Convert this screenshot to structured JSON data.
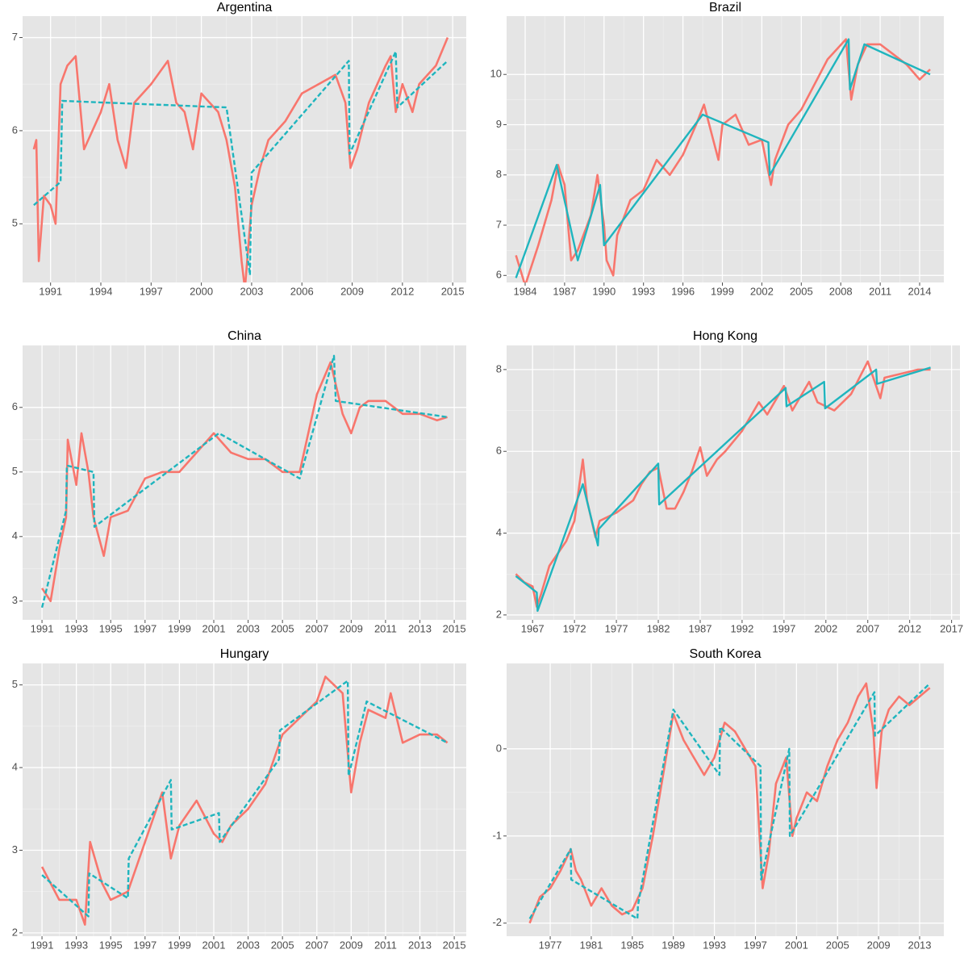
{
  "chart_data": [
    {
      "type": "line",
      "title": "Argentina",
      "xlim": [
        1989.33,
        2015.81
      ],
      "ylim": [
        4.37,
        7.23
      ],
      "xticks": [
        1991,
        1994,
        1997,
        2000,
        2003,
        2006,
        2009,
        2012,
        2015
      ],
      "yticks": [
        5,
        6,
        7
      ],
      "grid": true,
      "series": [
        {
          "color": "#f8766d",
          "linestyle": "solid",
          "x": [
            1990,
            1990.15,
            1990.3,
            1990.6,
            1991,
            1991.3,
            1991.6,
            1992,
            1992.5,
            1993,
            1993.5,
            1994,
            1994.5,
            1995,
            1995.5,
            1996,
            1997,
            1998,
            1998.5,
            1999,
            1999.5,
            2000,
            2001,
            2001.5,
            2002,
            2002.4,
            2002.6,
            2003,
            2003.5,
            2004,
            2005,
            2006,
            2007,
            2008,
            2008.6,
            2008.9,
            2009.3,
            2010,
            2011,
            2011.3,
            2011.6,
            2012,
            2012.6,
            2013,
            2014,
            2014.7
          ],
          "values": [
            5.8,
            5.9,
            4.6,
            5.3,
            5.2,
            5.0,
            6.5,
            6.7,
            6.8,
            5.8,
            6.0,
            6.2,
            6.5,
            5.9,
            5.6,
            6.3,
            6.5,
            6.75,
            6.3,
            6.2,
            5.8,
            6.4,
            6.2,
            5.9,
            5.4,
            4.6,
            4.3,
            5.2,
            5.6,
            5.9,
            6.1,
            6.4,
            6.5,
            6.6,
            6.3,
            5.6,
            5.8,
            6.3,
            6.7,
            6.8,
            6.2,
            6.5,
            6.2,
            6.5,
            6.7,
            7.0
          ]
        },
        {
          "color": "#1fb5be",
          "linestyle": "dashed",
          "x": [
            1990,
            1991.6,
            1991.7,
            2001.5,
            2002.9,
            2003,
            2008.8,
            2008.85,
            2011.6,
            2011.7,
            2014.7
          ],
          "values": [
            5.2,
            5.45,
            6.32,
            6.25,
            4.45,
            5.55,
            6.75,
            5.75,
            6.85,
            6.25,
            6.75
          ]
        }
      ]
    },
    {
      "type": "line",
      "title": "Brazil",
      "xlim": [
        1982.59,
        2015.84
      ],
      "ylim": [
        5.86,
        11.16
      ],
      "xticks": [
        1984,
        1987,
        1990,
        1993,
        1996,
        1999,
        2002,
        2005,
        2008,
        2011,
        2014
      ],
      "yticks": [
        6,
        7,
        8,
        9,
        10
      ],
      "grid": true,
      "series": [
        {
          "color": "#f8766d",
          "linestyle": "solid",
          "x": [
            1983.3,
            1984,
            1985,
            1986,
            1986.5,
            1987,
            1987.5,
            1988,
            1989,
            1989.5,
            1990,
            1990.2,
            1990.7,
            1991,
            1992,
            1993,
            1994,
            1995,
            1996,
            1997,
            1997.6,
            1998,
            1998.7,
            1999,
            2000,
            2001,
            2002,
            2002.7,
            2003,
            2004,
            2005,
            2006,
            2007,
            2008.4,
            2008.8,
            2009.3,
            2010,
            2011,
            2012,
            2013,
            2014,
            2014.8
          ],
          "values": [
            6.4,
            5.8,
            6.6,
            7.5,
            8.2,
            7.8,
            6.3,
            6.5,
            7.2,
            8.0,
            7.0,
            6.3,
            6.0,
            6.8,
            7.5,
            7.7,
            8.3,
            8.0,
            8.4,
            9.0,
            9.4,
            9.0,
            8.3,
            9.0,
            9.2,
            8.6,
            8.7,
            7.8,
            8.3,
            9.0,
            9.3,
            9.8,
            10.3,
            10.7,
            9.5,
            10.2,
            10.6,
            10.6,
            10.4,
            10.2,
            9.9,
            10.1
          ]
        },
        {
          "color": "#1fb5be",
          "linestyle": "solid",
          "x": [
            1983.3,
            1986.4,
            1988,
            1989.7,
            1990,
            1997.5,
            2002.5,
            2002.6,
            2008.6,
            2008.7,
            2009.8,
            2014.8
          ],
          "values": [
            5.95,
            8.2,
            6.3,
            7.8,
            6.6,
            9.2,
            8.65,
            8.0,
            10.7,
            9.7,
            10.6,
            10.0
          ]
        }
      ]
    },
    {
      "type": "line",
      "title": "China",
      "xlim": [
        1989.87,
        2015.7
      ],
      "ylim": [
        2.71,
        6.96
      ],
      "xticks": [
        1991,
        1993,
        1995,
        1997,
        1999,
        2001,
        2003,
        2005,
        2007,
        2009,
        2011,
        2013,
        2015
      ],
      "yticks": [
        3,
        4,
        5,
        6
      ],
      "grid": true,
      "series": [
        {
          "color": "#f8766d",
          "linestyle": "solid",
          "x": [
            1991,
            1991.5,
            1992,
            1992.4,
            1992.5,
            1993,
            1993.3,
            1993.7,
            1994,
            1994.6,
            1995,
            1996,
            1997,
            1998,
            1999,
            2000,
            2001,
            2002,
            2003,
            2004,
            2005,
            2006,
            2007,
            2007.8,
            2008.5,
            2009,
            2009.5,
            2010,
            2011,
            2012,
            2013,
            2014,
            2014.6
          ],
          "values": [
            3.2,
            3.0,
            3.8,
            4.3,
            5.5,
            4.8,
            5.6,
            5.0,
            4.3,
            3.7,
            4.3,
            4.4,
            4.9,
            5.0,
            5.0,
            5.3,
            5.6,
            5.3,
            5.2,
            5.2,
            5.0,
            5.0,
            6.2,
            6.7,
            5.9,
            5.6,
            6.0,
            6.1,
            6.1,
            5.9,
            5.9,
            5.8,
            5.85
          ]
        },
        {
          "color": "#1fb5be",
          "linestyle": "dashed",
          "x": [
            1991,
            1992.4,
            1992.45,
            1994,
            1994.05,
            2001.3,
            2006,
            2008,
            2008.1,
            2014.6
          ],
          "values": [
            2.9,
            4.4,
            5.1,
            5.0,
            4.15,
            5.6,
            4.9,
            6.8,
            6.1,
            5.85
          ]
        }
      ]
    },
    {
      "type": "line",
      "title": "Hong Kong",
      "xlim": [
        1963.9,
        2018
      ],
      "ylim": [
        1.88,
        8.59
      ],
      "xticks": [
        1967,
        1972,
        1977,
        1982,
        1987,
        1992,
        1997,
        2002,
        2007,
        2012,
        2017
      ],
      "yticks": [
        2,
        4,
        6,
        8
      ],
      "grid": true,
      "series": [
        {
          "color": "#f8766d",
          "linestyle": "solid",
          "x": [
            1965,
            1966,
            1967,
            1967.5,
            1968,
            1969,
            1970,
            1971,
            1972,
            1973,
            1973.5,
            1974.5,
            1975,
            1977,
            1979,
            1980,
            1981,
            1982,
            1983,
            1984,
            1985,
            1986,
            1987,
            1987.8,
            1989,
            1990,
            1992,
            1994,
            1995,
            1997,
            1998,
            2000,
            2001,
            2003,
            2005,
            2007,
            2008.5,
            2009,
            2011,
            2013,
            2014.5
          ],
          "values": [
            3.0,
            2.8,
            2.7,
            2.2,
            2.5,
            3.2,
            3.5,
            3.8,
            4.3,
            5.8,
            4.8,
            3.9,
            4.3,
            4.5,
            4.8,
            5.2,
            5.5,
            5.6,
            4.6,
            4.6,
            5.0,
            5.5,
            6.1,
            5.4,
            5.8,
            6.0,
            6.5,
            7.2,
            6.9,
            7.6,
            7.0,
            7.7,
            7.2,
            7.0,
            7.4,
            8.2,
            7.3,
            7.8,
            7.9,
            8.0,
            8.0
          ]
        },
        {
          "color": "#1fb5be",
          "linestyle": "solid",
          "x": [
            1965,
            1967.5,
            1967.6,
            1973,
            1974.8,
            1974.9,
            1982,
            1982.1,
            1997.2,
            1997.3,
            2001.8,
            2001.9,
            2008,
            2008.1,
            2014.5
          ],
          "values": [
            2.95,
            2.55,
            2.1,
            5.2,
            3.7,
            4.1,
            5.7,
            4.7,
            7.55,
            7.1,
            7.7,
            7.05,
            8.0,
            7.65,
            8.05
          ]
        }
      ]
    },
    {
      "type": "line",
      "title": "Hungary",
      "xlim": [
        1989.87,
        2015.7
      ],
      "ylim": [
        1.96,
        5.26
      ],
      "xticks": [
        1991,
        1993,
        1995,
        1997,
        1999,
        2001,
        2003,
        2005,
        2007,
        2009,
        2011,
        2013,
        2015
      ],
      "yticks": [
        2,
        3,
        4,
        5
      ],
      "grid": true,
      "series": [
        {
          "color": "#f8766d",
          "linestyle": "solid",
          "x": [
            1991,
            1992,
            1993,
            1993.5,
            1993.8,
            1994.5,
            1995,
            1996,
            1997,
            1998,
            1998.5,
            1999,
            2000,
            2001,
            2001.5,
            2002,
            2003,
            2004,
            2005,
            2006,
            2007,
            2007.5,
            2008.5,
            2009,
            2009.5,
            2010,
            2011,
            2011.3,
            2012,
            2013,
            2014,
            2014.6
          ],
          "values": [
            2.8,
            2.4,
            2.4,
            2.1,
            3.1,
            2.6,
            2.4,
            2.5,
            3.1,
            3.7,
            2.9,
            3.3,
            3.6,
            3.2,
            3.1,
            3.3,
            3.5,
            3.8,
            4.4,
            4.6,
            4.8,
            5.1,
            4.9,
            3.7,
            4.3,
            4.7,
            4.6,
            4.9,
            4.3,
            4.4,
            4.4,
            4.3
          ]
        },
        {
          "color": "#1fb5be",
          "linestyle": "dashed",
          "x": [
            1991,
            1993.7,
            1993.75,
            1996,
            1996.05,
            1998.5,
            1998.55,
            2001.3,
            2001.35,
            2004.8,
            2004.85,
            2008.8,
            2008.85,
            2009.9,
            2014.6
          ],
          "values": [
            2.7,
            2.2,
            2.72,
            2.42,
            2.9,
            3.85,
            3.25,
            3.45,
            3.1,
            4.1,
            4.45,
            5.05,
            3.9,
            4.8,
            4.3
          ]
        }
      ]
    },
    {
      "type": "line",
      "title": "South Korea",
      "xlim": [
        1972.75,
        2015.36
      ],
      "ylim": [
        -2.15,
        0.98
      ],
      "xticks": [
        1977,
        1981,
        1985,
        1989,
        1993,
        1997,
        2001,
        2005,
        2009,
        2013
      ],
      "yticks": [
        -2,
        -1,
        0
      ],
      "grid": true,
      "series": [
        {
          "color": "#f8766d",
          "linestyle": "solid",
          "x": [
            1975,
            1976,
            1977,
            1978,
            1979,
            1979.5,
            1980,
            1981,
            1982,
            1983,
            1984,
            1985,
            1986,
            1987,
            1988,
            1989,
            1990,
            1991,
            1992,
            1993,
            1994,
            1995,
            1996,
            1997,
            1997.7,
            1998.3,
            1999,
            2000,
            2000.6,
            2001,
            2002,
            2003,
            2004,
            2005,
            2006,
            2007,
            2007.8,
            2008.5,
            2008.8,
            2009.3,
            2010,
            2011,
            2012,
            2013,
            2014
          ],
          "values": [
            -2.0,
            -1.7,
            -1.6,
            -1.4,
            -1.15,
            -1.4,
            -1.5,
            -1.8,
            -1.6,
            -1.8,
            -1.9,
            -1.85,
            -1.6,
            -1.0,
            -0.3,
            0.4,
            0.1,
            -0.1,
            -0.3,
            -0.1,
            0.3,
            0.2,
            0.0,
            -0.2,
            -1.6,
            -1.2,
            -0.4,
            -0.1,
            -1.0,
            -0.8,
            -0.5,
            -0.6,
            -0.2,
            0.1,
            0.3,
            0.6,
            0.75,
            0.2,
            -0.45,
            0.2,
            0.45,
            0.6,
            0.5,
            0.6,
            0.7
          ]
        },
        {
          "color": "#1fb5be",
          "linestyle": "dashed",
          "x": [
            1975,
            1979,
            1979.05,
            1985.5,
            1985.55,
            1989,
            1993.5,
            1993.55,
            1997.5,
            1997.55,
            2000.3,
            2000.35,
            2008.6,
            2008.65,
            2014
          ],
          "values": [
            -1.95,
            -1.15,
            -1.5,
            -1.95,
            -1.8,
            0.45,
            -0.3,
            0.25,
            -0.2,
            -1.5,
            0.0,
            -1.0,
            0.65,
            0.15,
            0.75
          ]
        }
      ]
    }
  ]
}
